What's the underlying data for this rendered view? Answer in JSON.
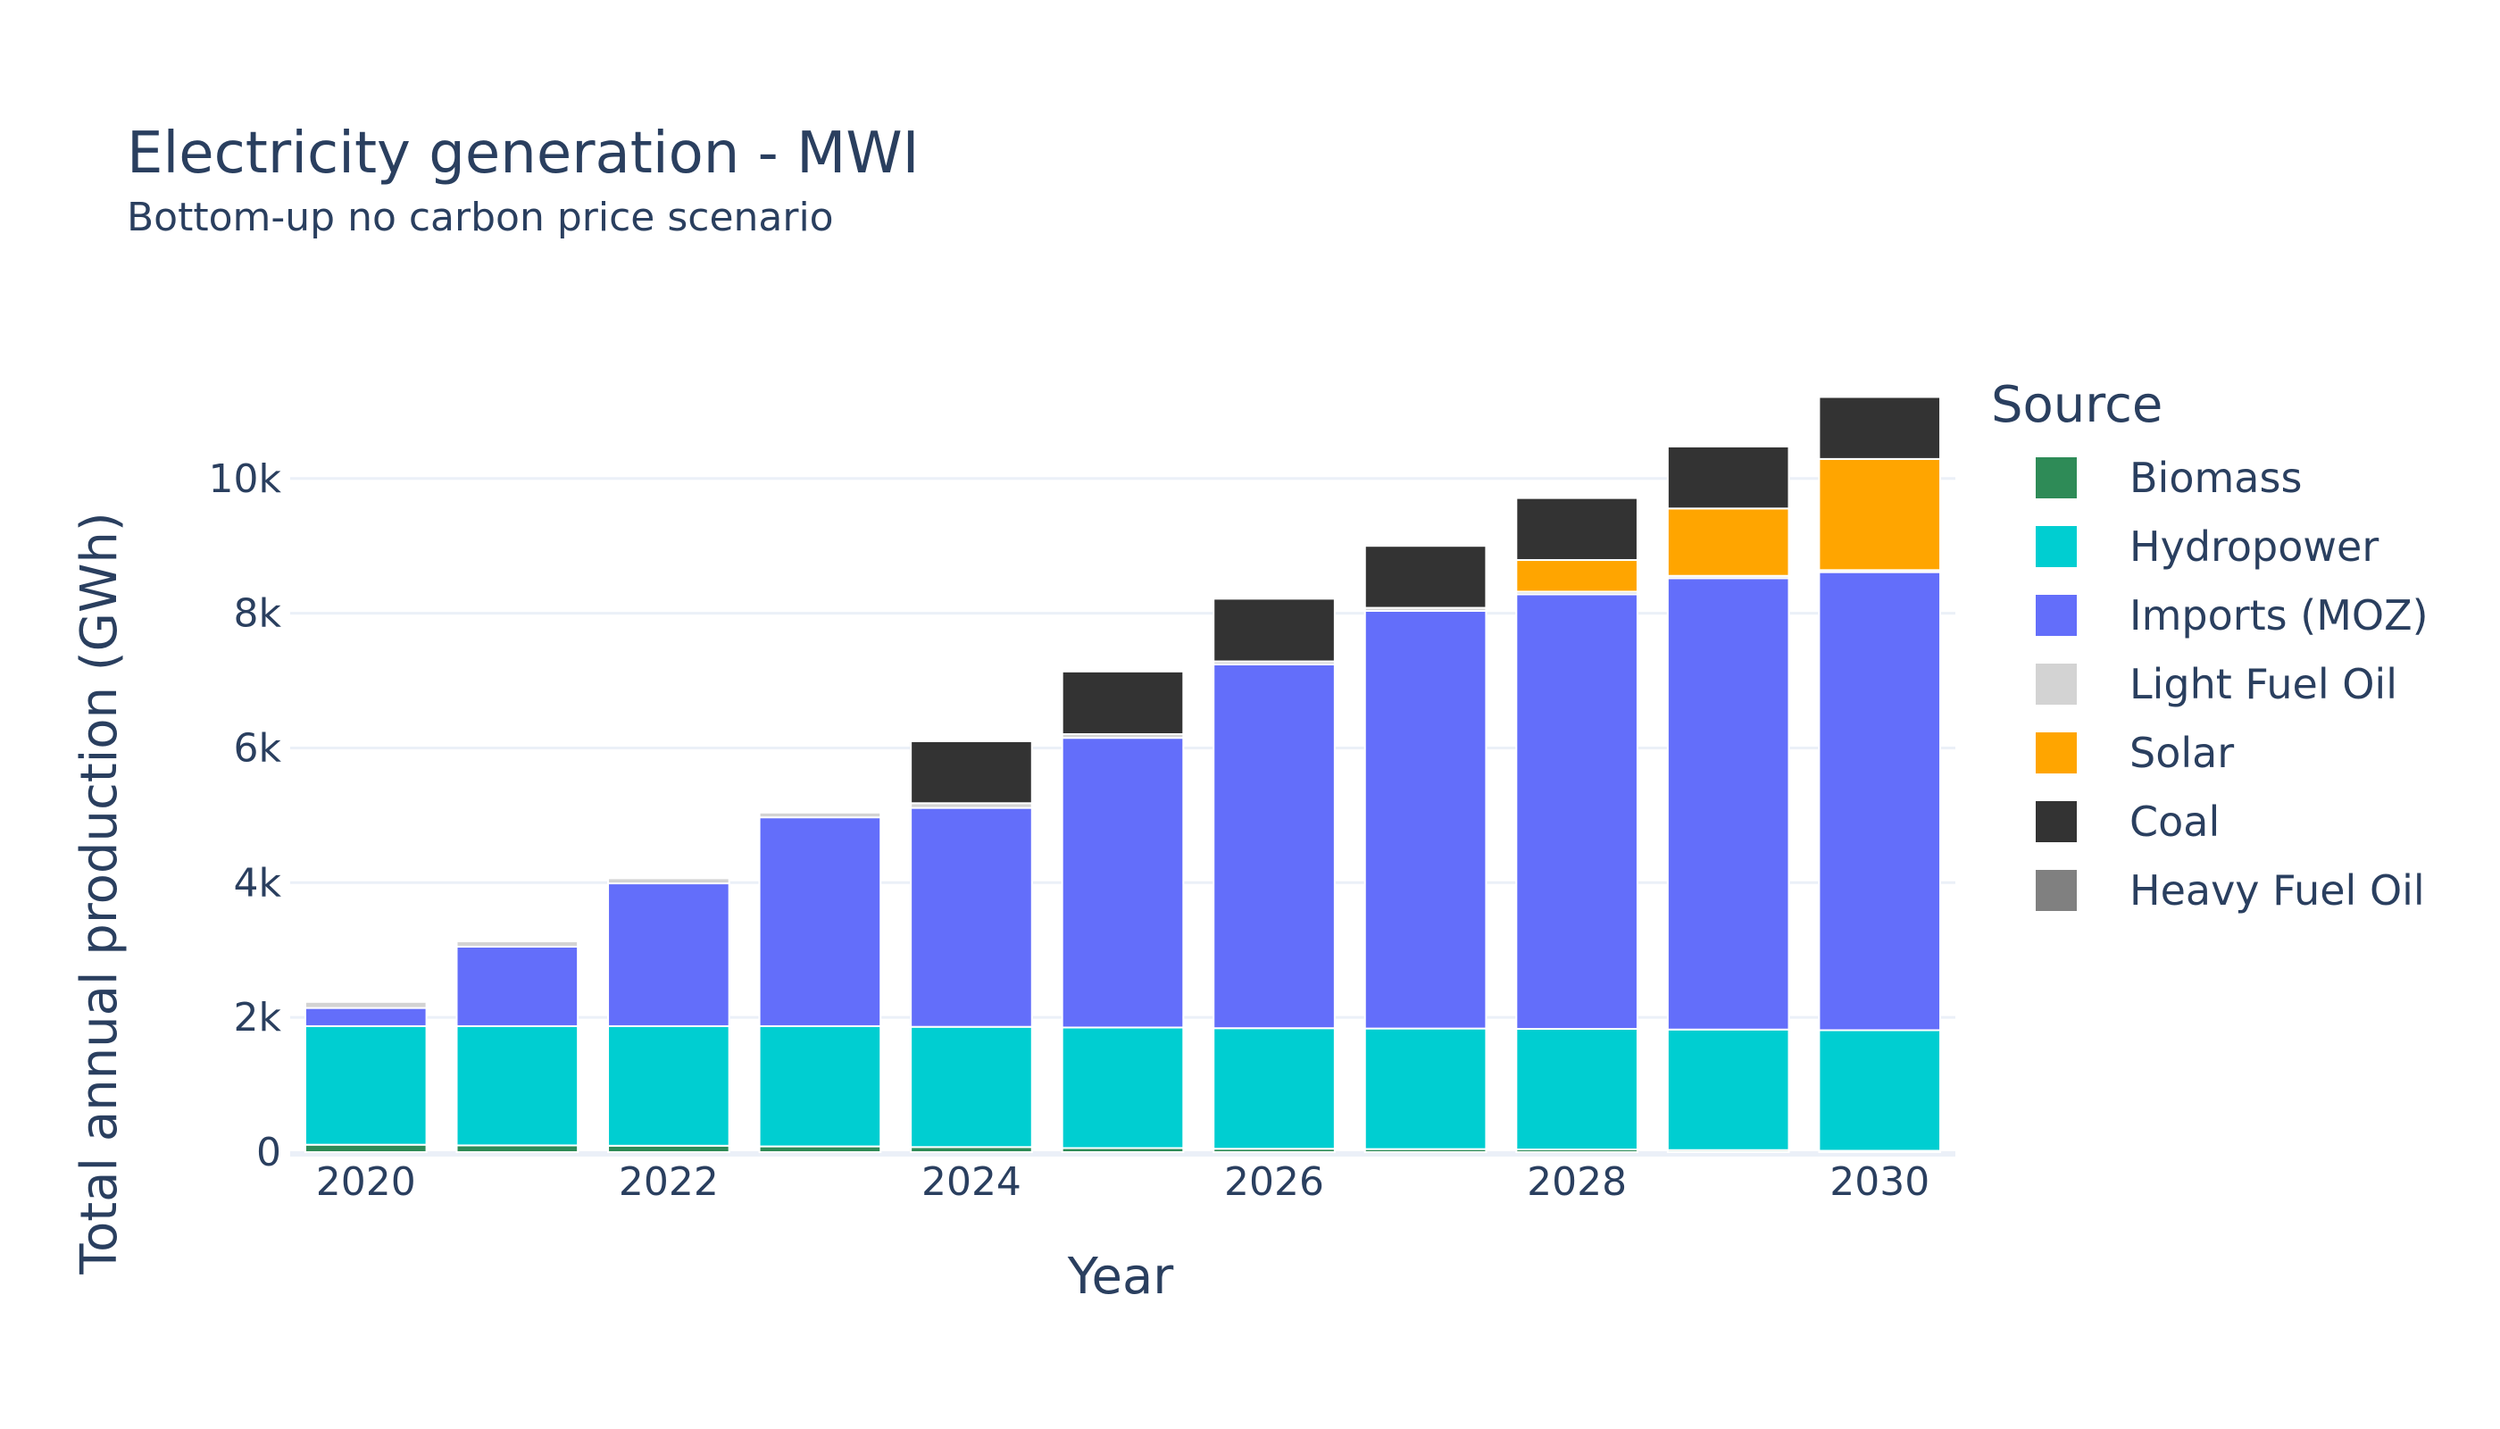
{
  "chart_data": {
    "type": "bar",
    "barmode": "stack",
    "title": "Electricity generation - MWI",
    "subtitle": "Bottom-up no carbon price scenario",
    "xlabel": "Year",
    "ylabel": "Total annual production (GWh)",
    "x": [
      2020,
      2021,
      2022,
      2023,
      2024,
      2025,
      2026,
      2027,
      2028,
      2029,
      2030
    ],
    "xticks": [
      "2020",
      "2022",
      "2024",
      "2026",
      "2028",
      "2030"
    ],
    "yticks": [
      "0",
      "2k",
      "4k",
      "6k",
      "8k",
      "10k"
    ],
    "ylim": [
      0,
      11800
    ],
    "grid": true,
    "legend": {
      "title": "Source",
      "position": "right"
    },
    "series": [
      {
        "name": "Biomass",
        "color": "#2e8b57",
        "values": [
          110,
          100,
          95,
          85,
          75,
          60,
          50,
          45,
          40,
          30,
          20
        ]
      },
      {
        "name": "Hydropower",
        "color": "#00ced1",
        "values": [
          1760,
          1770,
          1775,
          1785,
          1785,
          1790,
          1790,
          1790,
          1790,
          1790,
          1790
        ]
      },
      {
        "name": "Imports (MOZ)",
        "color": "#636efa",
        "values": [
          270,
          1180,
          2120,
          3100,
          3250,
          4300,
          5400,
          6200,
          6450,
          6700,
          6800
        ]
      },
      {
        "name": "Light Fuel Oil",
        "color": "#d3d3d3",
        "values": [
          90,
          80,
          75,
          70,
          70,
          55,
          45,
          45,
          40,
          35,
          30
        ]
      },
      {
        "name": "Solar",
        "color": "#ffa500",
        "values": [
          0,
          0,
          0,
          0,
          0,
          0,
          0,
          0,
          470,
          1000,
          1650
        ]
      },
      {
        "name": "Coal",
        "color": "#333333",
        "values": [
          0,
          0,
          0,
          0,
          920,
          930,
          930,
          920,
          920,
          920,
          920
        ]
      },
      {
        "name": "Heavy Fuel Oil",
        "color": "#808080",
        "values": [
          0,
          0,
          0,
          0,
          0,
          0,
          0,
          0,
          0,
          0,
          0
        ]
      }
    ]
  }
}
